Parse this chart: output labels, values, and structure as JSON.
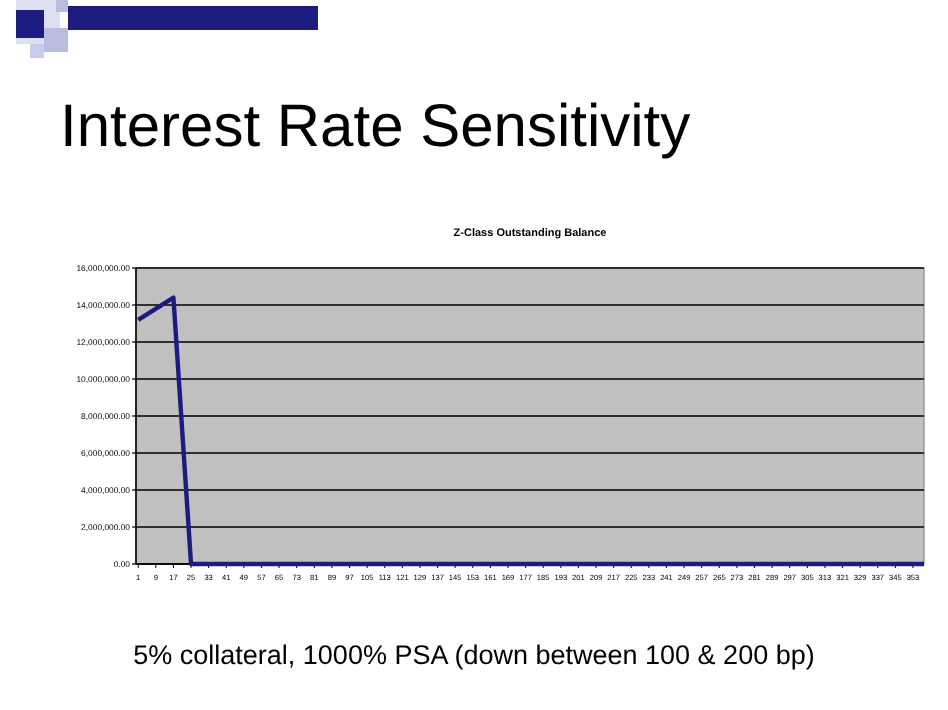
{
  "chart_data": {
    "type": "line",
    "title": "Interest Rate Sensitivity",
    "subtitle": "Z-Class Outstanding Balance",
    "annotations": [
      "5% collateral, 1000% PSA  (down between 100 & 200 bp)"
    ],
    "x": [
      1,
      17,
      25,
      358
    ],
    "series": [
      {
        "color": "#1c1c80",
        "values": [
          13200000,
          14400000,
          0,
          0
        ]
      }
    ],
    "xlim": [
      0,
      358
    ],
    "xticks": [
      1,
      9,
      17,
      25,
      33,
      41,
      49,
      57,
      65,
      73,
      81,
      89,
      97,
      105,
      113,
      121,
      129,
      137,
      145,
      153,
      161,
      169,
      177,
      185,
      193,
      201,
      209,
      217,
      225,
      233,
      241,
      249,
      257,
      265,
      273,
      281,
      289,
      297,
      305,
      313,
      321,
      329,
      337,
      345,
      353
    ],
    "ylim": [
      0,
      16000000
    ],
    "yticks": [
      {
        "value": 0,
        "label": "0.00"
      },
      {
        "value": 2000000,
        "label": "2,000,000.00"
      },
      {
        "value": 4000000,
        "label": "4,000,000.00"
      },
      {
        "value": 6000000,
        "label": "6,000,000.00"
      },
      {
        "value": 8000000,
        "label": "8,000,000.00"
      },
      {
        "value": 10000000,
        "label": "10,000,000.00"
      },
      {
        "value": 12000000,
        "label": "12,000,000.00"
      },
      {
        "value": 14000000,
        "label": "14,000,000.00"
      },
      {
        "value": 16000000,
        "label": "16,000,000.00"
      }
    ],
    "grid": "y",
    "marker": "none",
    "line_style": "solid"
  }
}
